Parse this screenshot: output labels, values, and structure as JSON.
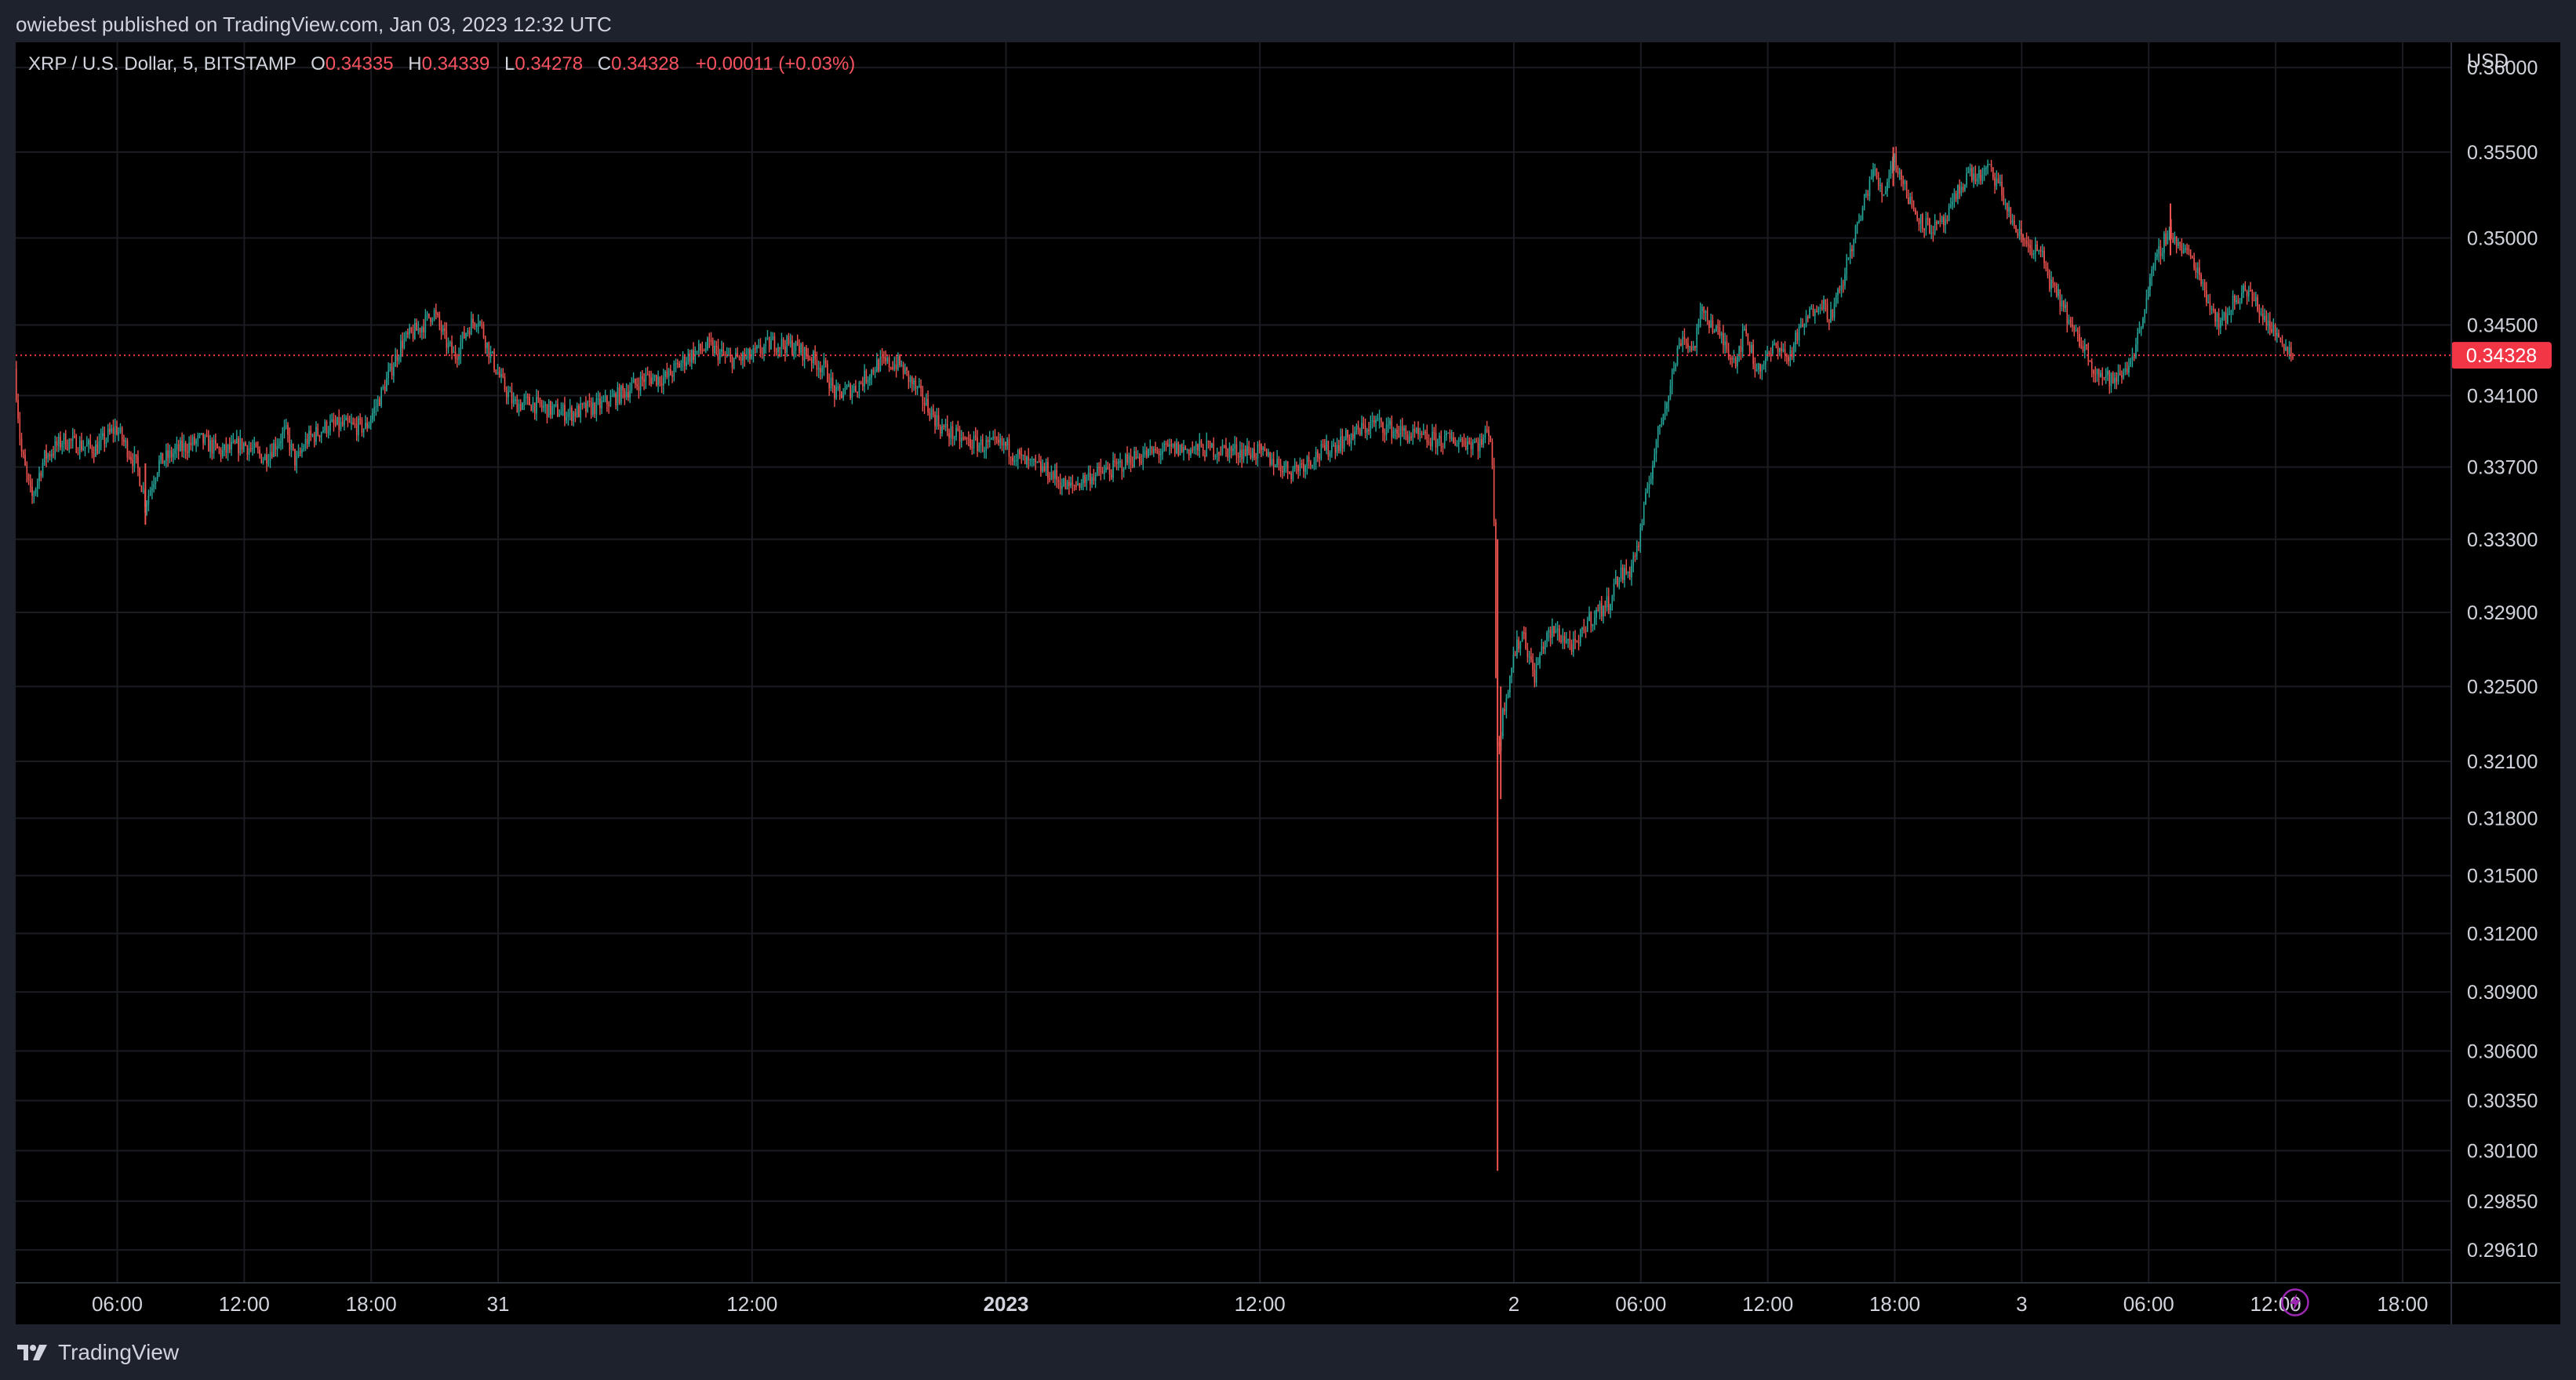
{
  "header": {
    "published_line": "owiebest published on TradingView.com, Jan 03, 2023 12:32 UTC"
  },
  "legend": {
    "symbol": "XRP / U.S. Dollar, 5, BITSTAMP",
    "open_label": "O",
    "open": "0.34335",
    "high_label": "H",
    "high": "0.34339",
    "low_label": "L",
    "low": "0.34278",
    "close_label": "C",
    "close": "0.34328",
    "change": "+0.00011 (+0.03%)"
  },
  "footer": {
    "brand": "TradingView"
  },
  "colors": {
    "up": "#26a69a",
    "down": "#ef5350",
    "background": "#000000",
    "grid": "#1a1c22",
    "price_line": "#f23645",
    "accent": "#9c27b0"
  },
  "icons": {
    "lightning": "lightning-icon",
    "logo": "tradingview-logo-icon"
  },
  "chart_data": {
    "type": "candlestick",
    "currency_label": "USD",
    "current_price": 0.34328,
    "current_price_label": "0.34328",
    "price_scale": "logarithmic",
    "y_ticks": [
      "0.36000",
      "0.35500",
      "0.35000",
      "0.34500",
      "0.34100",
      "0.33700",
      "0.33300",
      "0.32900",
      "0.32500",
      "0.32100",
      "0.31800",
      "0.31500",
      "0.31200",
      "0.30900",
      "0.30600",
      "0.30350",
      "0.30100",
      "0.29850",
      "0.29610"
    ],
    "ylim": [
      0.2945,
      0.3615
    ],
    "x_ticks": [
      {
        "t": 6,
        "label": "06:00"
      },
      {
        "t": 12,
        "label": "12:00"
      },
      {
        "t": 18,
        "label": "18:00"
      },
      {
        "t": 24,
        "label": "31"
      },
      {
        "t": 36,
        "label": "12:00"
      },
      {
        "t": 48,
        "label": "2023",
        "bold": true
      },
      {
        "t": 60,
        "label": "12:00"
      },
      {
        "t": 72,
        "label": "2"
      },
      {
        "t": 78,
        "label": "06:00"
      },
      {
        "t": 84,
        "label": "12:00"
      },
      {
        "t": 90,
        "label": "18:00"
      },
      {
        "t": 96,
        "label": "3"
      },
      {
        "t": 102,
        "label": "06:00"
      },
      {
        "t": 108,
        "label": "12:00"
      },
      {
        "t": 114,
        "label": "18:00"
      }
    ],
    "x_range_hours": [
      1.2,
      116.3
    ],
    "price_path": [
      {
        "t": 1.2,
        "p": 0.3425
      },
      {
        "t": 1.5,
        "p": 0.338
      },
      {
        "t": 2.0,
        "p": 0.3352
      },
      {
        "t": 2.6,
        "p": 0.3375
      },
      {
        "t": 3.5,
        "p": 0.3385
      },
      {
        "t": 5.0,
        "p": 0.338
      },
      {
        "t": 6.0,
        "p": 0.3392
      },
      {
        "t": 7.0,
        "p": 0.337
      },
      {
        "t": 7.4,
        "p": 0.335
      },
      {
        "t": 8.0,
        "p": 0.3372
      },
      {
        "t": 9.0,
        "p": 0.338
      },
      {
        "t": 10.0,
        "p": 0.3385
      },
      {
        "t": 11.0,
        "p": 0.3378
      },
      {
        "t": 12.0,
        "p": 0.3383
      },
      {
        "t": 13.0,
        "p": 0.3375
      },
      {
        "t": 14.0,
        "p": 0.339
      },
      {
        "t": 14.5,
        "p": 0.3372
      },
      {
        "t": 15.0,
        "p": 0.3385
      },
      {
        "t": 16.0,
        "p": 0.3393
      },
      {
        "t": 17.0,
        "p": 0.3393
      },
      {
        "t": 17.8,
        "p": 0.3392
      },
      {
        "t": 18.5,
        "p": 0.341
      },
      {
        "t": 19.5,
        "p": 0.344
      },
      {
        "t": 20.5,
        "p": 0.345
      },
      {
        "t": 21.0,
        "p": 0.3458
      },
      {
        "t": 21.6,
        "p": 0.344
      },
      {
        "t": 22.0,
        "p": 0.3432
      },
      {
        "t": 22.6,
        "p": 0.3448
      },
      {
        "t": 23.1,
        "p": 0.3455
      },
      {
        "t": 23.6,
        "p": 0.3436
      },
      {
        "t": 24.2,
        "p": 0.3418
      },
      {
        "t": 24.8,
        "p": 0.3405
      },
      {
        "t": 25.5,
        "p": 0.3406
      },
      {
        "t": 26.5,
        "p": 0.3402
      },
      {
        "t": 27.5,
        "p": 0.34
      },
      {
        "t": 29.0,
        "p": 0.3405
      },
      {
        "t": 30.0,
        "p": 0.3412
      },
      {
        "t": 31.0,
        "p": 0.342
      },
      {
        "t": 32.0,
        "p": 0.342
      },
      {
        "t": 33.0,
        "p": 0.3432
      },
      {
        "t": 34.0,
        "p": 0.3438
      },
      {
        "t": 35.0,
        "p": 0.343
      },
      {
        "t": 36.0,
        "p": 0.3432
      },
      {
        "t": 37.0,
        "p": 0.344
      },
      {
        "t": 38.0,
        "p": 0.3438
      },
      {
        "t": 38.8,
        "p": 0.3432
      },
      {
        "t": 39.5,
        "p": 0.3425
      },
      {
        "t": 40.0,
        "p": 0.341
      },
      {
        "t": 41.0,
        "p": 0.3415
      },
      {
        "t": 42.0,
        "p": 0.3428
      },
      {
        "t": 43.0,
        "p": 0.3428
      },
      {
        "t": 44.0,
        "p": 0.341
      },
      {
        "t": 45.0,
        "p": 0.3392
      },
      {
        "t": 46.0,
        "p": 0.3385
      },
      {
        "t": 47.0,
        "p": 0.3382
      },
      {
        "t": 48.0,
        "p": 0.3382
      },
      {
        "t": 49.0,
        "p": 0.3372
      },
      {
        "t": 50.0,
        "p": 0.3368
      },
      {
        "t": 51.0,
        "p": 0.3358
      },
      {
        "t": 52.0,
        "p": 0.3365
      },
      {
        "t": 53.0,
        "p": 0.3368
      },
      {
        "t": 54.0,
        "p": 0.3375
      },
      {
        "t": 55.0,
        "p": 0.3378
      },
      {
        "t": 56.0,
        "p": 0.338
      },
      {
        "t": 58.0,
        "p": 0.338
      },
      {
        "t": 60.0,
        "p": 0.3378
      },
      {
        "t": 61.5,
        "p": 0.3368
      },
      {
        "t": 62.5,
        "p": 0.3375
      },
      {
        "t": 64.0,
        "p": 0.3385
      },
      {
        "t": 65.5,
        "p": 0.3395
      },
      {
        "t": 66.5,
        "p": 0.339
      },
      {
        "t": 68.0,
        "p": 0.3385
      },
      {
        "t": 69.5,
        "p": 0.3385
      },
      {
        "t": 70.5,
        "p": 0.3383
      },
      {
        "t": 70.9,
        "p": 0.3392
      },
      {
        "t": 71.0,
        "p": 0.338
      },
      {
        "t": 71.1,
        "p": 0.336
      },
      {
        "t": 71.2,
        "p": 0.325
      },
      {
        "t": 71.3,
        "p": 0.3215
      },
      {
        "t": 71.6,
        "p": 0.324
      },
      {
        "t": 72.0,
        "p": 0.3265
      },
      {
        "t": 72.5,
        "p": 0.328
      },
      {
        "t": 73.0,
        "p": 0.3255
      },
      {
        "t": 73.5,
        "p": 0.3275
      },
      {
        "t": 74.0,
        "p": 0.328
      },
      {
        "t": 75.0,
        "p": 0.327
      },
      {
        "t": 75.5,
        "p": 0.3285
      },
      {
        "t": 76.5,
        "p": 0.3295
      },
      {
        "t": 77.0,
        "p": 0.331
      },
      {
        "t": 77.5,
        "p": 0.3312
      },
      {
        "t": 78.0,
        "p": 0.333
      },
      {
        "t": 78.4,
        "p": 0.336
      },
      {
        "t": 78.9,
        "p": 0.339
      },
      {
        "t": 79.5,
        "p": 0.342
      },
      {
        "t": 80.0,
        "p": 0.3445
      },
      {
        "t": 80.5,
        "p": 0.3435
      },
      {
        "t": 81.0,
        "p": 0.346
      },
      {
        "t": 81.5,
        "p": 0.3448
      },
      {
        "t": 82.0,
        "p": 0.344
      },
      {
        "t": 82.5,
        "p": 0.343
      },
      {
        "t": 83.0,
        "p": 0.3447
      },
      {
        "t": 83.5,
        "p": 0.3425
      },
      {
        "t": 84.0,
        "p": 0.343
      },
      {
        "t": 84.5,
        "p": 0.344
      },
      {
        "t": 85.0,
        "p": 0.343
      },
      {
        "t": 85.5,
        "p": 0.3445
      },
      {
        "t": 86.0,
        "p": 0.3455
      },
      {
        "t": 86.5,
        "p": 0.3465
      },
      {
        "t": 87.0,
        "p": 0.3455
      },
      {
        "t": 87.5,
        "p": 0.347
      },
      {
        "t": 88.0,
        "p": 0.3495
      },
      {
        "t": 88.5,
        "p": 0.3515
      },
      {
        "t": 89.0,
        "p": 0.354
      },
      {
        "t": 89.5,
        "p": 0.3525
      },
      {
        "t": 90.0,
        "p": 0.3548
      },
      {
        "t": 90.5,
        "p": 0.353
      },
      {
        "t": 91.0,
        "p": 0.3515
      },
      {
        "t": 91.5,
        "p": 0.3508
      },
      {
        "t": 92.0,
        "p": 0.3505
      },
      {
        "t": 92.5,
        "p": 0.351
      },
      {
        "t": 93.0,
        "p": 0.3525
      },
      {
        "t": 93.5,
        "p": 0.3538
      },
      {
        "t": 94.0,
        "p": 0.3535
      },
      {
        "t": 94.5,
        "p": 0.354
      },
      {
        "t": 95.0,
        "p": 0.353
      },
      {
        "t": 95.5,
        "p": 0.3512
      },
      {
        "t": 96.0,
        "p": 0.35
      },
      {
        "t": 96.5,
        "p": 0.3495
      },
      {
        "t": 97.0,
        "p": 0.349
      },
      {
        "t": 97.5,
        "p": 0.347
      },
      {
        "t": 98.0,
        "p": 0.3462
      },
      {
        "t": 98.5,
        "p": 0.3445
      },
      {
        "t": 99.0,
        "p": 0.3438
      },
      {
        "t": 99.5,
        "p": 0.3425
      },
      {
        "t": 100.0,
        "p": 0.342
      },
      {
        "t": 100.5,
        "p": 0.3418
      },
      {
        "t": 101.0,
        "p": 0.3425
      },
      {
        "t": 101.5,
        "p": 0.344
      },
      {
        "t": 102.0,
        "p": 0.347
      },
      {
        "t": 102.5,
        "p": 0.349
      },
      {
        "t": 103.0,
        "p": 0.3505
      },
      {
        "t": 103.5,
        "p": 0.3495
      },
      {
        "t": 104.0,
        "p": 0.349
      },
      {
        "t": 104.5,
        "p": 0.3478
      },
      {
        "t": 105.0,
        "p": 0.346
      },
      {
        "t": 105.5,
        "p": 0.345
      },
      {
        "t": 106.0,
        "p": 0.3462
      },
      {
        "t": 106.5,
        "p": 0.347
      },
      {
        "t": 107.0,
        "p": 0.3465
      },
      {
        "t": 107.5,
        "p": 0.3455
      },
      {
        "t": 108.0,
        "p": 0.3445
      },
      {
        "t": 108.5,
        "p": 0.344
      },
      {
        "t": 108.8,
        "p": 0.3433
      }
    ],
    "wick_extremes": [
      {
        "t": 71.2,
        "low": 0.3,
        "high": 0.333
      },
      {
        "t": 71.35,
        "low": 0.319,
        "high": 0.325
      },
      {
        "t": 89.9,
        "low": 0.353,
        "high": 0.3553
      },
      {
        "t": 103.0,
        "low": 0.349,
        "high": 0.352
      },
      {
        "t": 7.3,
        "low": 0.3338,
        "high": 0.3372
      }
    ]
  }
}
